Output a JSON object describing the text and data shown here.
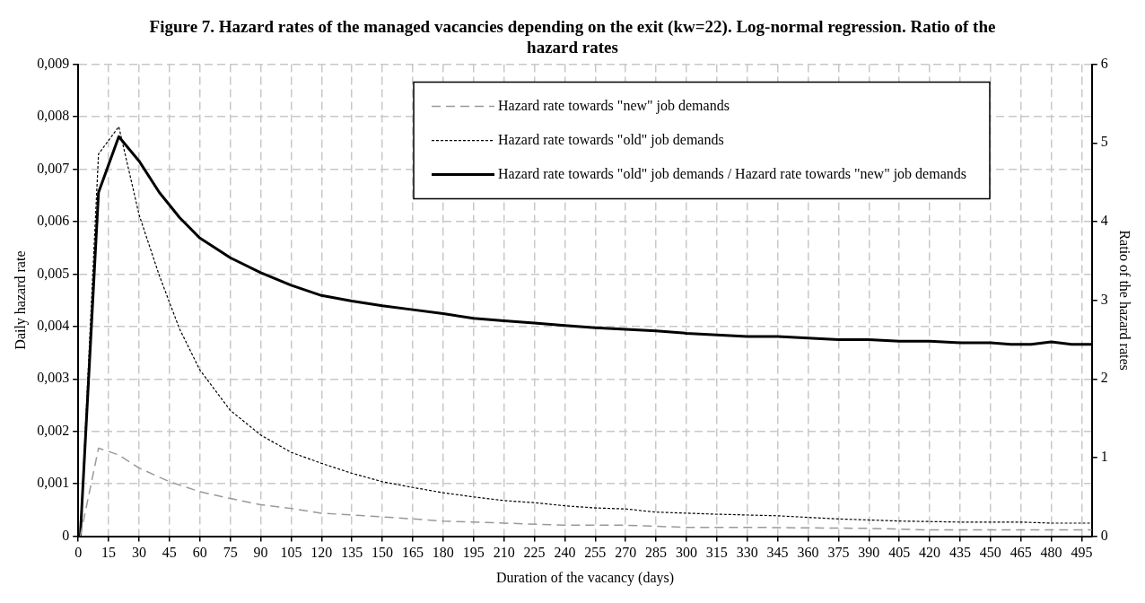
{
  "chart_data": {
    "type": "line",
    "title": "Figure 7. Hazard rates of the managed vacancies depending on the exit (kw=22). Log-normal regression. Ratio of the hazard rates",
    "xlabel": "Duration of the vacancy (days)",
    "ylabel": "Daily hazard rate",
    "y2label": "Ratio of the hazard rates",
    "xlim": [
      0,
      500
    ],
    "xticks": [
      0,
      15,
      30,
      45,
      60,
      75,
      90,
      105,
      120,
      135,
      150,
      165,
      180,
      195,
      210,
      225,
      240,
      255,
      270,
      285,
      300,
      315,
      330,
      345,
      360,
      375,
      390,
      405,
      420,
      435,
      450,
      465,
      480,
      495
    ],
    "ylim": [
      0,
      0.009
    ],
    "yticks": [
      {
        "value": 0,
        "label": "0"
      },
      {
        "value": 0.001,
        "label": "0,001"
      },
      {
        "value": 0.002,
        "label": "0,002"
      },
      {
        "value": 0.003,
        "label": "0,003"
      },
      {
        "value": 0.004,
        "label": "0,004"
      },
      {
        "value": 0.005,
        "label": "0,005"
      },
      {
        "value": 0.006,
        "label": "0,006"
      },
      {
        "value": 0.007,
        "label": "0,007"
      },
      {
        "value": 0.008,
        "label": "0,008"
      },
      {
        "value": 0.009,
        "label": "0,009"
      }
    ],
    "y2lim": [
      0,
      6
    ],
    "y2ticks": [
      0,
      1,
      2,
      3,
      4,
      5,
      6
    ],
    "grid": true,
    "legend": "top",
    "marker": "none",
    "series": [
      {
        "name": "Hazard rate towards \"new\" job demands",
        "color": "#999999",
        "line_style": "dashed",
        "x": [
          1,
          10,
          20,
          30,
          45,
          60,
          75,
          90,
          105,
          120,
          150,
          180,
          210,
          240,
          270,
          300,
          330,
          390,
          420,
          500
        ],
        "values": [
          0,
          0.00168,
          0.00155,
          0.0013,
          0.00104,
          0.00085,
          0.00072,
          0.0006,
          0.00053,
          0.00044,
          0.00037,
          0.00029,
          0.00025,
          0.00021,
          0.00021,
          0.00017,
          0.00017,
          0.00015,
          0.00012,
          0.00012
        ]
      },
      {
        "name": "Hazard rate towards \"old\" job demands",
        "color": "#000000",
        "line_style": "dotted",
        "x": [
          1,
          10,
          20,
          30,
          40,
          50,
          60,
          75,
          90,
          105,
          120,
          135,
          150,
          165,
          180,
          195,
          210,
          225,
          240,
          255,
          270,
          285,
          300,
          315,
          345,
          375,
          405,
          435,
          465,
          480,
          500
        ],
        "values": [
          0,
          0.00729,
          0.00781,
          0.00613,
          0.00497,
          0.00395,
          0.00317,
          0.0024,
          0.00193,
          0.0016,
          0.00139,
          0.0012,
          0.00104,
          0.00093,
          0.00083,
          0.00075,
          0.00068,
          0.00064,
          0.00058,
          0.00054,
          0.00052,
          0.00046,
          0.00044,
          0.00042,
          0.00039,
          0.00033,
          0.00029,
          0.00027,
          0.00027,
          0.00025,
          0.00025
        ]
      },
      {
        "name": "Hazard rate towards \"old\" job demands / Hazard rate towards \"new\" job demands",
        "color": "#000000",
        "line_style": "solid",
        "axis": "y2",
        "x": [
          1,
          10,
          20,
          30,
          40,
          50,
          60,
          75,
          90,
          105,
          120,
          135,
          150,
          165,
          180,
          195,
          210,
          225,
          240,
          255,
          270,
          285,
          300,
          330,
          345,
          360,
          375,
          390,
          405,
          420,
          435,
          450,
          460,
          470,
          480,
          490,
          500
        ],
        "values": [
          0,
          4.37,
          5.08,
          4.77,
          4.37,
          4.05,
          3.79,
          3.54,
          3.35,
          3.19,
          3.06,
          2.99,
          2.93,
          2.88,
          2.83,
          2.77,
          2.74,
          2.71,
          2.68,
          2.65,
          2.63,
          2.61,
          2.58,
          2.54,
          2.54,
          2.52,
          2.5,
          2.5,
          2.48,
          2.48,
          2.46,
          2.46,
          2.44,
          2.44,
          2.47,
          2.44,
          2.44
        ]
      }
    ]
  }
}
